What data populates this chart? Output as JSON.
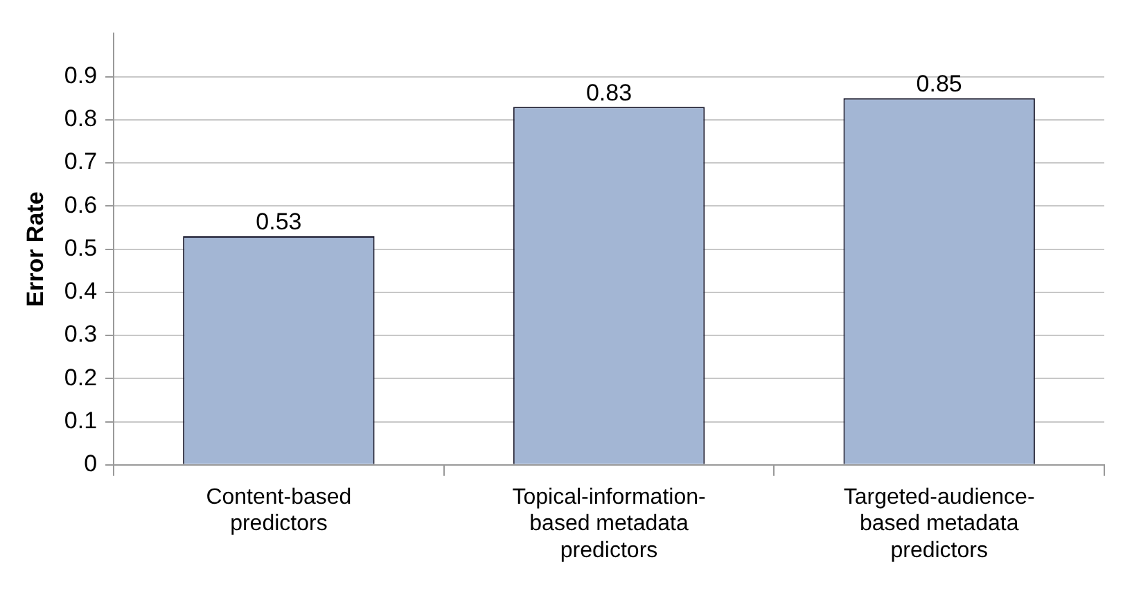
{
  "chart_data": {
    "type": "bar",
    "ylabel": "Error Rate",
    "categories": [
      "Content-based predictors",
      "Topical-information-based metadata predictors",
      "Targeted-audience-based metadata predictors"
    ],
    "values": [
      0.53,
      0.83,
      0.85
    ],
    "color": "#a3b6d4",
    "ylim": [
      0,
      1
    ],
    "yticks": [
      0,
      0.1,
      0.2,
      0.3,
      0.4,
      0.5,
      0.6,
      0.7,
      0.8,
      0.9
    ],
    "grid": "y",
    "data_labels": true,
    "legend": false
  }
}
